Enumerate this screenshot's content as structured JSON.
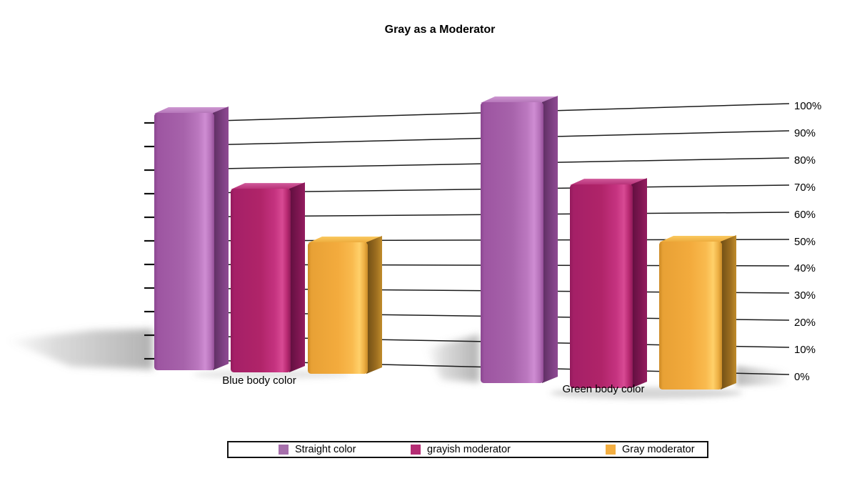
{
  "title": "Gray as a Moderator",
  "chart_data": {
    "type": "bar",
    "style": "3d-perspective-columns",
    "title": "Gray as a Moderator",
    "categories": [
      "Blue body color",
      "Green body color"
    ],
    "series": [
      {
        "name": "Straight color",
        "color": "#a66fab",
        "values": [
          100,
          100
        ]
      },
      {
        "name": "grayish moderator",
        "color": "#b52d74",
        "values": [
          70,
          70
        ]
      },
      {
        "name": "Gray moderator",
        "color": "#f3ae41",
        "values": [
          50,
          50
        ]
      }
    ],
    "y_ticks": [
      "0%",
      "10%",
      "20%",
      "30%",
      "40%",
      "50%",
      "60%",
      "70%",
      "80%",
      "90%",
      "100%"
    ],
    "ylim": [
      0,
      100
    ],
    "value_unit": "%",
    "grid": true,
    "axis_side": "right",
    "legend_position": "bottom"
  }
}
